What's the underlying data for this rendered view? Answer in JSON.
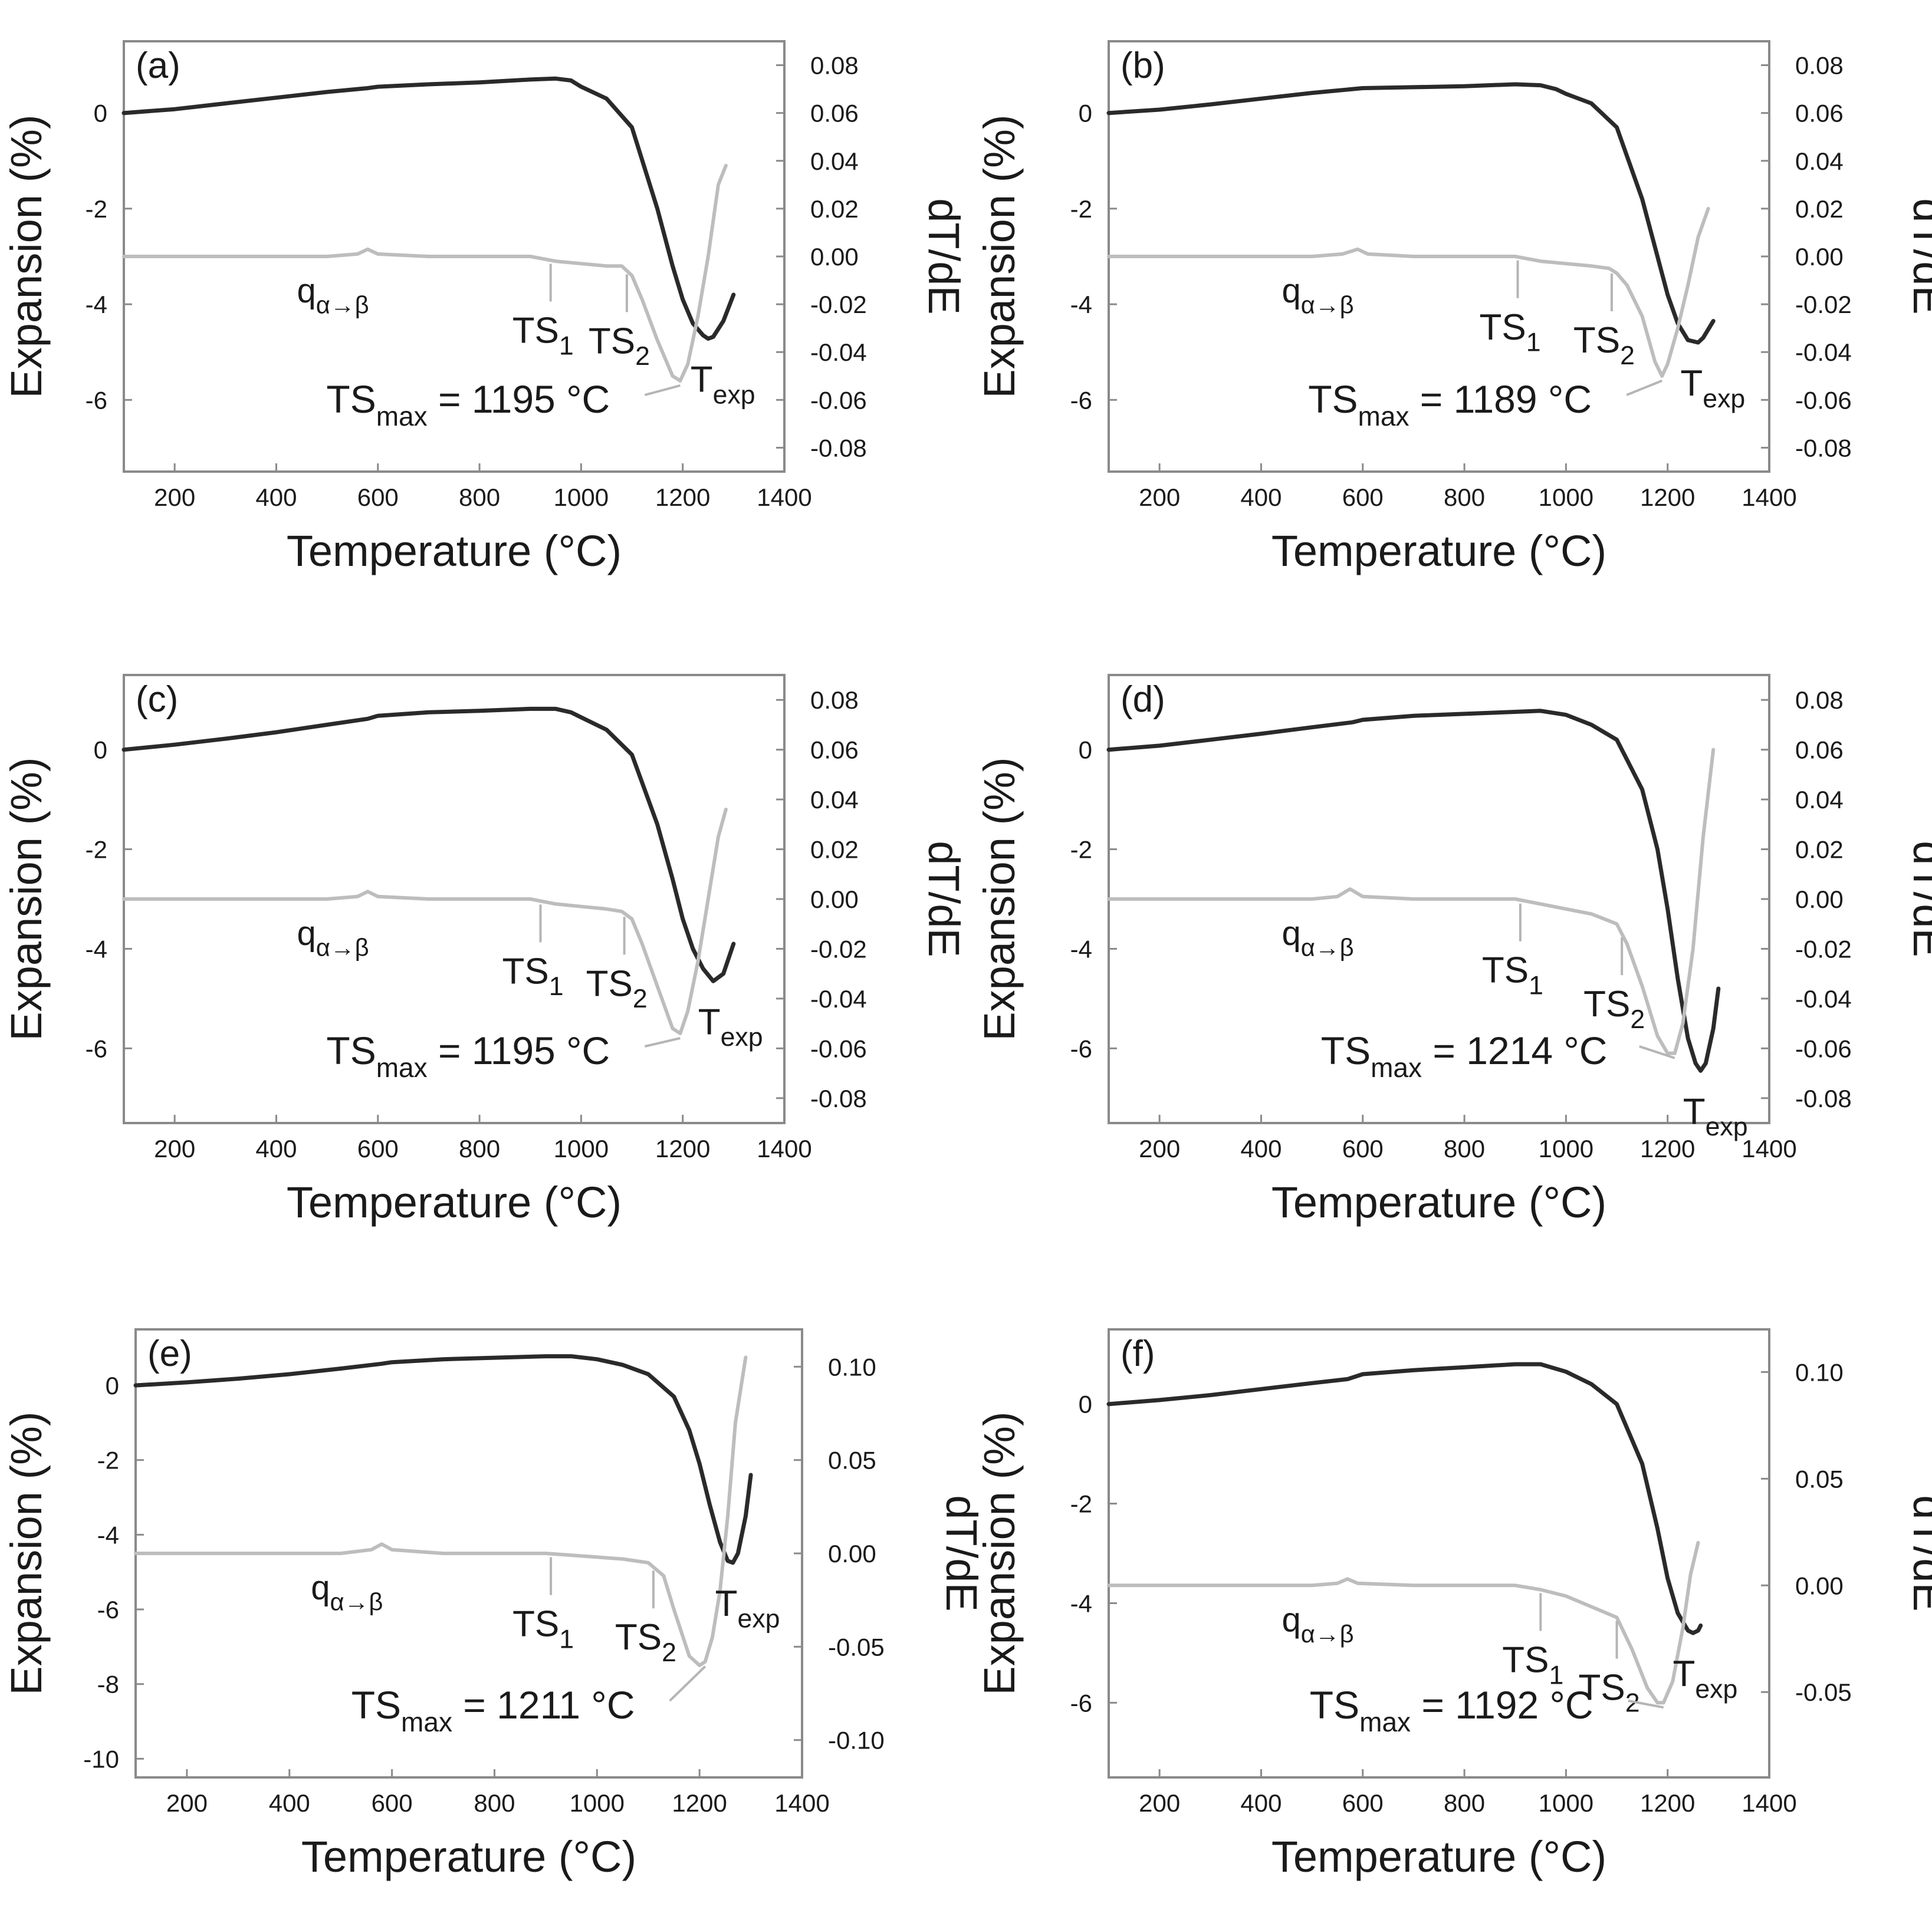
{
  "colors": {
    "expansion": "#2a2a2a",
    "derivative": "#bdbdbd",
    "frame": "#8a8a8a",
    "leader": "#b5b5b5",
    "text": "#1a1a1a"
  },
  "common": {
    "xlabel": "Temperature (°C)",
    "ylabel_left": "Expansion (%)",
    "ylabel_right": "dT/dE",
    "xlim": [
      100,
      1400
    ],
    "xticks": [
      200,
      400,
      600,
      800,
      1000,
      1200,
      1400
    ],
    "labels": {
      "q": "q",
      "q_sub": "α→β",
      "ts1": "TS",
      "ts1_sub": "1",
      "ts2": "TS",
      "ts2_sub": "2",
      "texp": "T",
      "texp_sub": "exp",
      "tsmax": "TS",
      "tsmax_sub": "max"
    }
  },
  "chart_data": [
    {
      "type": "line",
      "panel": "(a)",
      "ylim_left": [
        -7.5,
        1.5
      ],
      "yticks_left": [
        0,
        -2,
        -4,
        -6
      ],
      "ylim_right": [
        -0.09,
        0.09
      ],
      "yticks_right": [
        "0.08",
        "0.06",
        "0.04",
        "0.02",
        "0.00",
        "-0.02",
        "-0.04",
        "-0.06",
        "-0.08"
      ],
      "tsmax_value": " = 1195 °C",
      "ts1_x": 940,
      "ts2_x": 1090,
      "tsmax_x": 1195,
      "texp_x": 1250,
      "series": [
        {
          "name": "Expansion (%)",
          "axis": "left",
          "x": [
            100,
            200,
            300,
            400,
            500,
            580,
            600,
            700,
            800,
            900,
            950,
            980,
            1000,
            1050,
            1100,
            1150,
            1180,
            1200,
            1220,
            1240,
            1250,
            1260,
            1280,
            1300
          ],
          "y": [
            0,
            0.08,
            0.2,
            0.32,
            0.44,
            0.52,
            0.55,
            0.6,
            0.64,
            0.7,
            0.72,
            0.68,
            0.55,
            0.3,
            -0.3,
            -2.0,
            -3.2,
            -3.9,
            -4.4,
            -4.65,
            -4.72,
            -4.68,
            -4.35,
            -3.8
          ]
        },
        {
          "name": "dT/dE",
          "axis": "right",
          "x": [
            100,
            300,
            500,
            560,
            580,
            600,
            700,
            900,
            950,
            1000,
            1050,
            1080,
            1100,
            1120,
            1150,
            1180,
            1195,
            1210,
            1230,
            1250,
            1270,
            1285
          ],
          "y": [
            0,
            0,
            0,
            0.001,
            0.003,
            0.001,
            0,
            0,
            -0.002,
            -0.003,
            -0.004,
            -0.004,
            -0.008,
            -0.018,
            -0.035,
            -0.05,
            -0.052,
            -0.045,
            -0.025,
            0.0,
            0.03,
            0.038
          ]
        }
      ]
    },
    {
      "type": "line",
      "panel": "(b)",
      "ylim_left": [
        -7.5,
        1.5
      ],
      "yticks_left": [
        0,
        -2,
        -4,
        -6
      ],
      "ylim_right": [
        -0.09,
        0.09
      ],
      "yticks_right": [
        "0.08",
        "0.06",
        "0.04",
        "0.02",
        "0.00",
        "-0.02",
        "-0.04",
        "-0.06",
        "-0.08"
      ],
      "tsmax_value": " = 1189 °C",
      "ts1_x": 905,
      "ts2_x": 1090,
      "tsmax_x": 1189,
      "texp_x": 1260,
      "series": [
        {
          "name": "Expansion (%)",
          "axis": "left",
          "x": [
            100,
            200,
            300,
            400,
            500,
            580,
            600,
            700,
            800,
            900,
            950,
            980,
            1000,
            1050,
            1100,
            1150,
            1180,
            1200,
            1220,
            1240,
            1260,
            1270,
            1290
          ],
          "y": [
            0,
            0.07,
            0.18,
            0.3,
            0.42,
            0.5,
            0.52,
            0.54,
            0.56,
            0.6,
            0.58,
            0.5,
            0.4,
            0.2,
            -0.3,
            -1.8,
            -3.0,
            -3.8,
            -4.4,
            -4.75,
            -4.8,
            -4.7,
            -4.35
          ]
        },
        {
          "name": "dT/dE",
          "axis": "right",
          "x": [
            100,
            300,
            500,
            560,
            590,
            610,
            700,
            900,
            950,
            1000,
            1050,
            1085,
            1100,
            1120,
            1150,
            1175,
            1189,
            1200,
            1220,
            1240,
            1260,
            1280
          ],
          "y": [
            0,
            0,
            0,
            0.001,
            0.003,
            0.001,
            0,
            0,
            -0.002,
            -0.003,
            -0.004,
            -0.005,
            -0.007,
            -0.012,
            -0.025,
            -0.044,
            -0.05,
            -0.045,
            -0.03,
            -0.012,
            0.008,
            0.02
          ]
        }
      ]
    },
    {
      "type": "line",
      "panel": "(c)",
      "ylim_left": [
        -7.5,
        1.5
      ],
      "yticks_left": [
        0,
        -2,
        -4,
        -6
      ],
      "ylim_right": [
        -0.09,
        0.09
      ],
      "yticks_right": [
        "0.08",
        "0.06",
        "0.04",
        "0.02",
        "0.00",
        "-0.02",
        "-0.04",
        "-0.06",
        "-0.08"
      ],
      "tsmax_value": " = 1195 °C",
      "ts1_x": 920,
      "ts2_x": 1085,
      "tsmax_x": 1195,
      "texp_x": 1265,
      "series": [
        {
          "name": "Expansion (%)",
          "axis": "left",
          "x": [
            100,
            200,
            300,
            400,
            500,
            580,
            600,
            700,
            800,
            900,
            950,
            980,
            1000,
            1050,
            1100,
            1150,
            1180,
            1200,
            1220,
            1240,
            1260,
            1280,
            1300
          ],
          "y": [
            0,
            0.1,
            0.22,
            0.35,
            0.5,
            0.62,
            0.68,
            0.75,
            0.78,
            0.82,
            0.82,
            0.75,
            0.65,
            0.4,
            -0.1,
            -1.5,
            -2.6,
            -3.4,
            -4.0,
            -4.4,
            -4.65,
            -4.5,
            -3.9
          ]
        },
        {
          "name": "dT/dE",
          "axis": "right",
          "x": [
            100,
            300,
            500,
            560,
            580,
            600,
            700,
            900,
            950,
            1000,
            1050,
            1080,
            1100,
            1120,
            1150,
            1180,
            1195,
            1210,
            1230,
            1250,
            1270,
            1285
          ],
          "y": [
            0,
            0,
            0,
            0.001,
            0.003,
            0.001,
            0,
            0,
            -0.002,
            -0.003,
            -0.004,
            -0.005,
            -0.008,
            -0.018,
            -0.035,
            -0.052,
            -0.054,
            -0.045,
            -0.025,
            0.0,
            0.025,
            0.036
          ]
        }
      ]
    },
    {
      "type": "line",
      "panel": "(d)",
      "ylim_left": [
        -7.5,
        1.5
      ],
      "yticks_left": [
        0,
        -2,
        -4,
        -6
      ],
      "ylim_right": [
        -0.09,
        0.09
      ],
      "yticks_right": [
        "0.08",
        "0.06",
        "0.04",
        "0.02",
        "0.00",
        "-0.02",
        "-0.04",
        "-0.06",
        "-0.08"
      ],
      "tsmax_value": " = 1214 °C",
      "ts1_x": 910,
      "ts2_x": 1110,
      "tsmax_x": 1214,
      "texp_x": 1265,
      "series": [
        {
          "name": "Expansion (%)",
          "axis": "left",
          "x": [
            100,
            200,
            300,
            400,
            500,
            580,
            600,
            700,
            800,
            900,
            950,
            1000,
            1050,
            1100,
            1150,
            1180,
            1200,
            1220,
            1240,
            1255,
            1265,
            1275,
            1290,
            1300
          ],
          "y": [
            0,
            0.08,
            0.2,
            0.32,
            0.45,
            0.55,
            0.6,
            0.68,
            0.72,
            0.76,
            0.78,
            0.7,
            0.5,
            0.2,
            -0.8,
            -2.0,
            -3.2,
            -4.6,
            -5.8,
            -6.3,
            -6.45,
            -6.3,
            -5.6,
            -4.8
          ]
        },
        {
          "name": "dT/dE",
          "axis": "right",
          "x": [
            100,
            300,
            500,
            550,
            575,
            600,
            700,
            900,
            950,
            1000,
            1050,
            1100,
            1120,
            1150,
            1180,
            1200,
            1214,
            1230,
            1250,
            1270,
            1290
          ],
          "y": [
            0,
            0,
            0,
            0.001,
            0.004,
            0.001,
            0,
            0,
            -0.002,
            -0.004,
            -0.006,
            -0.01,
            -0.018,
            -0.035,
            -0.055,
            -0.062,
            -0.062,
            -0.05,
            -0.02,
            0.025,
            0.06
          ]
        }
      ]
    },
    {
      "type": "line",
      "panel": "(e)",
      "ylim_left": [
        -10.5,
        1.5
      ],
      "yticks_left": [
        0,
        -2,
        -4,
        -6,
        -8,
        -10
      ],
      "ylim_right": [
        -0.12,
        0.12
      ],
      "yticks_right": [
        "0.10",
        "0.05",
        "0.00",
        "-0.05",
        "-0.10"
      ],
      "tsmax_value": " = 1211 °C",
      "ts1_x": 910,
      "ts2_x": 1110,
      "tsmax_x": 1211,
      "texp_x": 1265,
      "series": [
        {
          "name": "Expansion (%)",
          "axis": "left",
          "x": [
            100,
            200,
            300,
            400,
            500,
            580,
            600,
            700,
            800,
            900,
            950,
            1000,
            1050,
            1100,
            1150,
            1180,
            1200,
            1220,
            1240,
            1255,
            1265,
            1275,
            1290,
            1300
          ],
          "y": [
            0,
            0.08,
            0.18,
            0.3,
            0.45,
            0.58,
            0.62,
            0.7,
            0.74,
            0.78,
            0.78,
            0.7,
            0.55,
            0.3,
            -0.3,
            -1.2,
            -2.1,
            -3.2,
            -4.2,
            -4.7,
            -4.75,
            -4.5,
            -3.5,
            -2.4
          ]
        },
        {
          "name": "dT/dE",
          "axis": "right",
          "x": [
            100,
            300,
            500,
            560,
            580,
            600,
            700,
            900,
            1000,
            1050,
            1100,
            1130,
            1150,
            1180,
            1200,
            1211,
            1225,
            1240,
            1255,
            1270,
            1290
          ],
          "y": [
            0,
            0,
            0,
            0.002,
            0.005,
            0.002,
            0,
            0,
            -0.002,
            -0.003,
            -0.005,
            -0.012,
            -0.03,
            -0.055,
            -0.06,
            -0.058,
            -0.045,
            -0.02,
            0.02,
            0.07,
            0.105
          ]
        }
      ]
    },
    {
      "type": "line",
      "panel": "(f)",
      "ylim_left": [
        -7.5,
        1.5
      ],
      "yticks_left": [
        0,
        -2,
        -4,
        -6
      ],
      "ylim_right": [
        -0.09,
        0.12
      ],
      "yticks_right": [
        "0.10",
        "0.05",
        "0.00",
        "-0.05"
      ],
      "tsmax_value": " = 1192 °C",
      "ts1_x": 950,
      "ts2_x": 1100,
      "tsmax_x": 1192,
      "texp_x": 1245,
      "series": [
        {
          "name": "Expansion (%)",
          "axis": "left",
          "x": [
            100,
            200,
            300,
            400,
            500,
            570,
            600,
            700,
            800,
            900,
            950,
            1000,
            1050,
            1100,
            1150,
            1180,
            1200,
            1220,
            1240,
            1250,
            1260,
            1265
          ],
          "y": [
            0,
            0.08,
            0.18,
            0.3,
            0.42,
            0.5,
            0.6,
            0.68,
            0.74,
            0.8,
            0.8,
            0.65,
            0.4,
            0.0,
            -1.2,
            -2.5,
            -3.5,
            -4.2,
            -4.55,
            -4.6,
            -4.55,
            -4.45
          ]
        },
        {
          "name": "dT/dE",
          "axis": "right",
          "x": [
            100,
            300,
            500,
            550,
            570,
            590,
            700,
            900,
            950,
            1000,
            1050,
            1100,
            1130,
            1160,
            1180,
            1192,
            1210,
            1230,
            1245,
            1260
          ],
          "y": [
            0,
            0,
            0,
            0.001,
            0.003,
            0.001,
            0,
            0,
            -0.002,
            -0.005,
            -0.01,
            -0.015,
            -0.03,
            -0.048,
            -0.055,
            -0.055,
            -0.045,
            -0.02,
            0.005,
            0.02
          ]
        }
      ]
    }
  ]
}
